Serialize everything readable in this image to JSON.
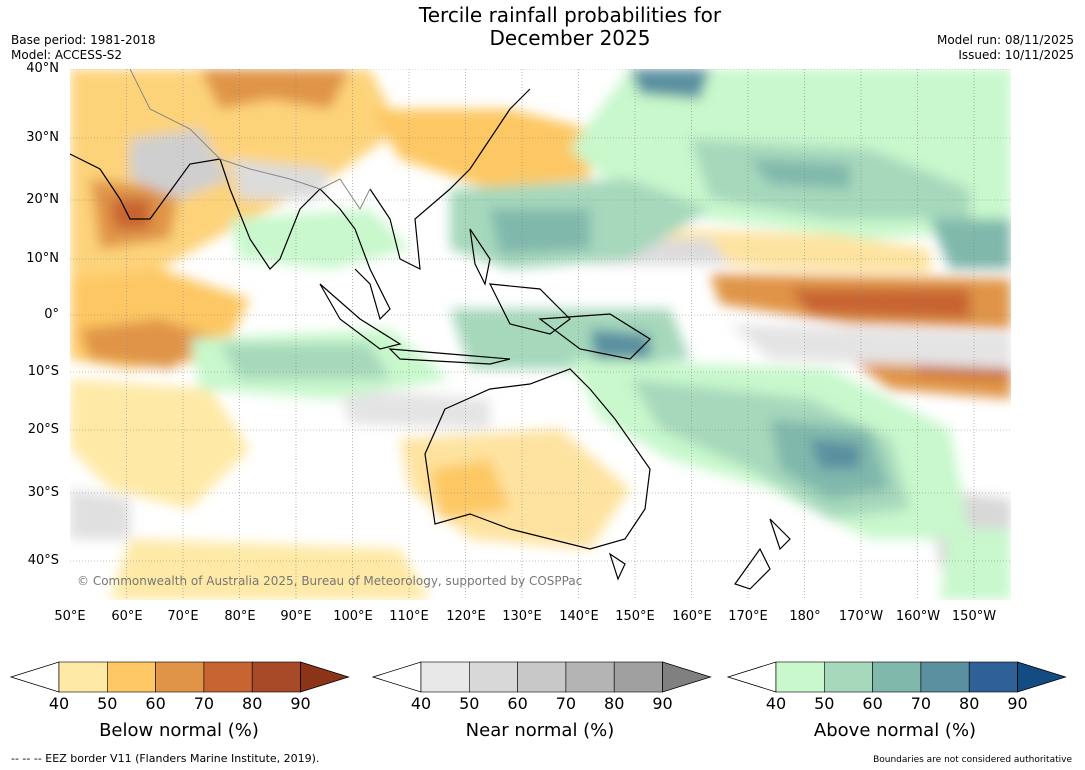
{
  "title_line1": "Tercile rainfall probabilities for",
  "title_line2": "December 2025",
  "meta": {
    "base_period": "Base period: 1981-2018",
    "model": "Model: ACCESS-S2",
    "model_run": "Model run: 08/11/2025",
    "issued": "Issued: 10/11/2025"
  },
  "lat_labels": [
    "40°N",
    "30°N",
    "20°N",
    "10°N",
    "0°",
    "10°S",
    "20°S",
    "30°S",
    "40°S"
  ],
  "lon_labels": [
    "50°E",
    "60°E",
    "70°E",
    "80°E",
    "90°E",
    "100°E",
    "110°E",
    "120°E",
    "130°E",
    "140°E",
    "150°E",
    "160°E",
    "170°E",
    "180°",
    "170°W",
    "160°W",
    "150°W"
  ],
  "copyright": "© Commonwealth of Australia 2025, Bureau of Meteorology, supported by COSPPac",
  "colorbars": [
    {
      "label": "Below normal (%)",
      "ticks": [
        "40",
        "50",
        "60",
        "70",
        "80",
        "90"
      ],
      "colors": [
        "#ffffff",
        "#fee9a6",
        "#fdc863",
        "#e09447",
        "#c86432",
        "#a84a28",
        "#8b3418"
      ]
    },
    {
      "label": "Near normal (%)",
      "ticks": [
        "40",
        "50",
        "60",
        "70",
        "80",
        "90"
      ],
      "colors": [
        "#ffffff",
        "#e8e8e8",
        "#d8d8d8",
        "#c8c8c8",
        "#b4b4b4",
        "#a0a0a0",
        "#808080"
      ]
    },
    {
      "label": "Above normal (%)",
      "ticks": [
        "40",
        "50",
        "60",
        "70",
        "80",
        "90"
      ],
      "colors": [
        "#ffffff",
        "#c8f8cc",
        "#a6d8bc",
        "#80b8ac",
        "#5a90a0",
        "#306098",
        "#124c80"
      ]
    }
  ],
  "footer_left": "--  --  -- EEZ border V11 (Flanders Marine Institute, 2019).",
  "footer_right": "Boundaries are not considered authoritative"
}
